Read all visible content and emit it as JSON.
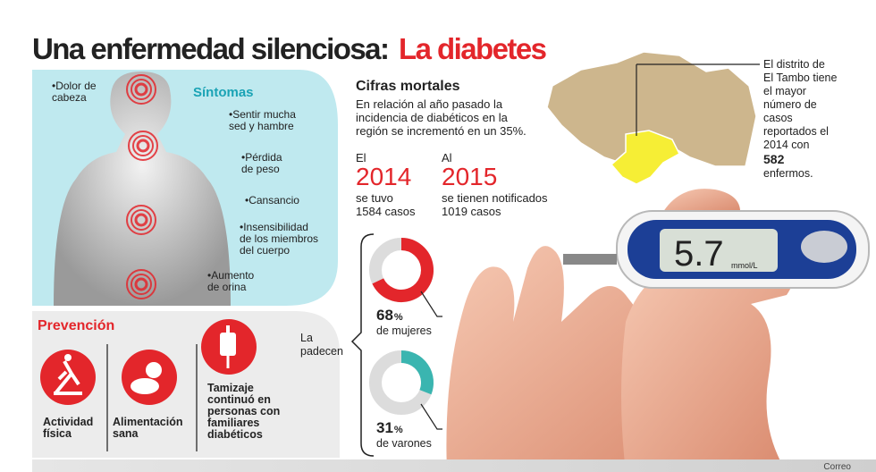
{
  "title": {
    "main": "Una enfermedad silenciosa:",
    "highlight": "La diabetes"
  },
  "symptoms": {
    "heading": "Síntomas",
    "items": [
      [
        "•Dolor de",
        "cabeza"
      ],
      [
        "•Sentir mucha",
        "sed y hambre"
      ],
      [
        "•Pérdida",
        "de peso"
      ],
      [
        "•Cansancio"
      ],
      [
        "•Insensibilidad",
        "de los miembros",
        "del cuerpo"
      ],
      [
        "•Aumento",
        "de orina"
      ]
    ]
  },
  "prevention": {
    "heading": "Prevención",
    "items": [
      [
        "Actividad",
        "física"
      ],
      [
        "Alimentación",
        "sana"
      ],
      [
        "Tamizaje",
        "continuó en",
        "personas con",
        "familiares",
        "diabéticos"
      ]
    ]
  },
  "stats": {
    "heading": "Cifras mortales",
    "intro": [
      "En relación al año pasado la",
      "incidencia de diabéticos en la",
      "región se incrementó en un 35%."
    ],
    "years": [
      {
        "prefix": "El",
        "year": "2014",
        "lines": [
          "se tuvo",
          "1584 casos"
        ]
      },
      {
        "prefix": "Al",
        "year": "2015",
        "lines": [
          "se tienen notificados",
          "1019 casos"
        ]
      }
    ]
  },
  "donuts": {
    "label": [
      "La",
      "padecen"
    ],
    "items": [
      {
        "value": 68,
        "unit": "%",
        "label": "de mujeres",
        "color": "#e3262b"
      },
      {
        "value": 31,
        "unit": "%",
        "label": "de varones",
        "color": "#3ab5b0"
      }
    ]
  },
  "map_note": {
    "lines": [
      "El distrito de",
      "El Tambo tiene",
      "el mayor",
      "número de",
      "casos",
      "reportados el",
      "2014 con"
    ],
    "count": "582",
    "suffix": "enfermos."
  },
  "meter": {
    "reading": "5.7",
    "unit": "mmol/L"
  },
  "source": "Correo"
}
